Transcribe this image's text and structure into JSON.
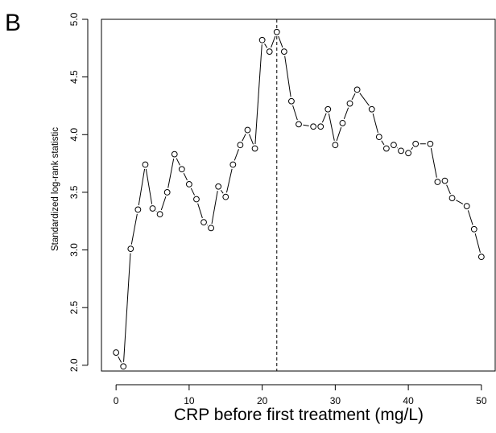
{
  "panel_label": "B",
  "chart_data": {
    "type": "line",
    "title": "",
    "xlabel": "CRP before first treatment (mg/L)",
    "ylabel": "Standardized log-rank statistic",
    "xlim": [
      -2,
      52
    ],
    "ylim": [
      1.95,
      5.0
    ],
    "xticks": [
      0,
      10,
      20,
      30,
      40,
      50
    ],
    "xtick_labels": [
      "0",
      "10",
      "20",
      "30",
      "40",
      "50"
    ],
    "yticks": [
      2.0,
      2.5,
      3.0,
      3.5,
      4.0,
      4.5,
      5.0
    ],
    "ytick_labels": [
      "2.0",
      "2.5",
      "3.0",
      "3.5",
      "4.0",
      "4.5",
      "5.0"
    ],
    "grid": false,
    "markers": "open-circle",
    "cutoff_line": {
      "x": 22,
      "style": "dashed"
    },
    "series": [
      {
        "x": [
          0,
          1,
          2,
          3,
          4,
          5,
          6,
          7,
          8,
          9,
          10,
          11,
          12,
          13,
          14,
          15,
          16,
          17,
          18,
          19,
          20,
          21,
          22,
          23,
          24,
          25,
          26,
          27,
          28,
          29,
          30,
          31,
          32,
          33,
          34,
          35,
          36,
          37,
          38,
          39,
          40,
          41,
          42,
          43,
          44,
          45,
          46,
          47,
          48,
          49,
          50
        ],
        "values": [
          2.11,
          1.99,
          3.01,
          3.35,
          3.74,
          3.36,
          3.31,
          3.5,
          3.83,
          3.7,
          3.57,
          3.44,
          3.24,
          3.19,
          3.55,
          3.46,
          3.74,
          3.91,
          4.04,
          3.88,
          4.82,
          4.72,
          4.89,
          4.72,
          4.29,
          4.09,
          null,
          4.07,
          4.07,
          4.22,
          3.91,
          4.1,
          4.27,
          4.39,
          null,
          4.22,
          3.98,
          3.88,
          3.91,
          3.86,
          3.84,
          3.92,
          null,
          3.92,
          3.59,
          3.6,
          3.45,
          null,
          3.38,
          3.18,
          2.94
        ]
      }
    ]
  }
}
